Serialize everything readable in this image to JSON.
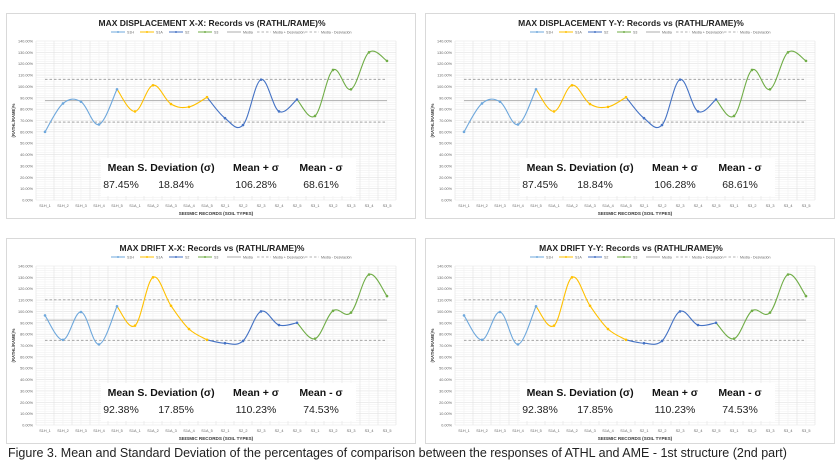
{
  "caption": "Figure 3. Mean and Standard Deviation of the percentages of comparison between the responses of ATHL and AME - 1st structure (2nd part)",
  "chart_data": [
    {
      "type": "line",
      "title": "MAX DISPLACEMENT X-X: Records vs (RATHL/RAME)%",
      "xlabel": "SEISMIC RECORDS (SOIL TYPES)",
      "ylabel": "(RATHL/RAME)%",
      "ylim": [
        0,
        140
      ],
      "yticks": [
        "0.00%",
        "10.00%",
        "20.00%",
        "30.00%",
        "40.00%",
        "50.00%",
        "60.00%",
        "70.00%",
        "80.00%",
        "90.00%",
        "100.00%",
        "110.00%",
        "120.00%",
        "130.00%",
        "140.00%"
      ],
      "categories": [
        "S1H_1",
        "S1H_2",
        "S1H_3",
        "S1H_4",
        "S1H_5",
        "S1A_1",
        "S1A_2",
        "S1A_3",
        "S1A_4",
        "S1A_5",
        "S2_1",
        "S2_2",
        "S2_3",
        "S2_4",
        "S2_5",
        "S3_1",
        "S3_2",
        "S3_3",
        "S3_4",
        "S3_5"
      ],
      "values": [
        60,
        85,
        86.5,
        66.5,
        97.5,
        78,
        101,
        84.5,
        82,
        90.5,
        72,
        66,
        106,
        78,
        88.5,
        74,
        114.5,
        97.5,
        130,
        122.5
      ],
      "series": [
        {
          "name": "S1H",
          "color": "#6fa8dc",
          "range": [
            0,
            4
          ]
        },
        {
          "name": "S1A",
          "color": "#ffc000",
          "range": [
            4,
            9
          ]
        },
        {
          "name": "S2",
          "color": "#4472c4",
          "range": [
            9,
            14
          ]
        },
        {
          "name": "S3",
          "color": "#70ad47",
          "range": [
            14,
            19
          ]
        }
      ],
      "reference_lines": [
        {
          "name": "Media",
          "value": 87.45,
          "style": "solid"
        },
        {
          "name": "Media + Desviación",
          "value": 106.28,
          "style": "dashed"
        },
        {
          "name": "Media - Desviación",
          "value": 68.61,
          "style": "dashed"
        }
      ],
      "legend_position": "top",
      "grid": true,
      "stats": {
        "headers": [
          "Mean",
          "S. Deviation (σ)",
          "Mean + σ",
          "Mean - σ"
        ],
        "values": [
          "87.45%",
          "18.84%",
          "106.28%",
          "68.61%"
        ]
      }
    },
    {
      "type": "line",
      "title": "MAX DISPLACEMENT Y-Y: Records vs (RATHL/RAME)%",
      "xlabel": "SEISMIC RECORDS (SOIL TYPES)",
      "ylabel": "(RATHL/RAME)%",
      "ylim": [
        0,
        140
      ],
      "yticks": [
        "0.00%",
        "10.00%",
        "20.00%",
        "30.00%",
        "40.00%",
        "50.00%",
        "60.00%",
        "70.00%",
        "80.00%",
        "90.00%",
        "100.00%",
        "110.00%",
        "120.00%",
        "130.00%",
        "140.00%"
      ],
      "categories": [
        "S1H_1",
        "S1H_2",
        "S1H_3",
        "S1H_4",
        "S1H_5",
        "S1A_1",
        "S1A_2",
        "S1A_3",
        "S1A_4",
        "S1A_5",
        "S2_1",
        "S2_2",
        "S2_3",
        "S2_4",
        "S2_5",
        "S3_1",
        "S3_2",
        "S3_3",
        "S3_4",
        "S3_5"
      ],
      "values": [
        60,
        85,
        86.5,
        66.5,
        97.5,
        78,
        101,
        84.5,
        82,
        90.5,
        72,
        66,
        106,
        78,
        88.5,
        74,
        114.5,
        97.5,
        130,
        122.5
      ],
      "series": [
        {
          "name": "S1H",
          "color": "#6fa8dc",
          "range": [
            0,
            4
          ]
        },
        {
          "name": "S1A",
          "color": "#ffc000",
          "range": [
            4,
            9
          ]
        },
        {
          "name": "S2",
          "color": "#4472c4",
          "range": [
            9,
            14
          ]
        },
        {
          "name": "S3",
          "color": "#70ad47",
          "range": [
            14,
            19
          ]
        }
      ],
      "reference_lines": [
        {
          "name": "Media",
          "value": 87.45,
          "style": "solid"
        },
        {
          "name": "Media + Desviación",
          "value": 106.28,
          "style": "dashed"
        },
        {
          "name": "Media - Desviación",
          "value": 68.61,
          "style": "dashed"
        }
      ],
      "legend_position": "top",
      "grid": true,
      "stats": {
        "headers": [
          "Mean",
          "S. Deviation (σ)",
          "Mean + σ",
          "Mean - σ"
        ],
        "values": [
          "87.45%",
          "18.84%",
          "106.28%",
          "68.61%"
        ]
      }
    },
    {
      "type": "line",
      "title": "MAX DRIFT X-X: Records vs (RATHL/RAME)%",
      "xlabel": "SEISMIC RECORDS (SOIL TYPES)",
      "ylabel": "(RATHL/RAME)%",
      "ylim": [
        0,
        140
      ],
      "yticks": [
        "0.00%",
        "10.00%",
        "20.00%",
        "30.00%",
        "40.00%",
        "50.00%",
        "60.00%",
        "70.00%",
        "80.00%",
        "90.00%",
        "100.00%",
        "110.00%",
        "120.00%",
        "130.00%",
        "140.00%"
      ],
      "categories": [
        "S1H_1",
        "S1H_2",
        "S1H_3",
        "S1H_4",
        "S1H_5",
        "S1A_1",
        "S1A_2",
        "S1A_3",
        "S1A_4",
        "S1A_5",
        "S2_1",
        "S2_2",
        "S2_3",
        "S2_4",
        "S2_5",
        "S3_1",
        "S3_2",
        "S3_3",
        "S3_4",
        "S3_5"
      ],
      "values": [
        96.5,
        75,
        99.5,
        71,
        104.5,
        87.5,
        130,
        105,
        84.5,
        75,
        72,
        74,
        100,
        88,
        90,
        76,
        100.5,
        99,
        132.5,
        113.5
      ],
      "series": [
        {
          "name": "S1H",
          "color": "#6fa8dc",
          "range": [
            0,
            4
          ]
        },
        {
          "name": "S1A",
          "color": "#ffc000",
          "range": [
            4,
            9
          ]
        },
        {
          "name": "S2",
          "color": "#4472c4",
          "range": [
            9,
            14
          ]
        },
        {
          "name": "S3",
          "color": "#70ad47",
          "range": [
            14,
            19
          ]
        }
      ],
      "reference_lines": [
        {
          "name": "Media",
          "value": 92.38,
          "style": "solid"
        },
        {
          "name": "Media + Desviación",
          "value": 110.23,
          "style": "dashed"
        },
        {
          "name": "Media - Desviación",
          "value": 74.53,
          "style": "dashed"
        }
      ],
      "legend_position": "top",
      "grid": true,
      "stats": {
        "headers": [
          "Mean",
          "S. Deviation (σ)",
          "Mean + σ",
          "Mean - σ"
        ],
        "values": [
          "92.38%",
          "17.85%",
          "110.23%",
          "74.53%"
        ]
      }
    },
    {
      "type": "line",
      "title": "MAX DRIFT Y-Y: Records vs (RATHL/RAME)%",
      "xlabel": "SEISMIC RECORDS (SOIL TYPES)",
      "ylabel": "(RATHL/RAME)%",
      "ylim": [
        0,
        140
      ],
      "yticks": [
        "0.00%",
        "10.00%",
        "20.00%",
        "30.00%",
        "40.00%",
        "50.00%",
        "60.00%",
        "70.00%",
        "80.00%",
        "90.00%",
        "100.00%",
        "110.00%",
        "120.00%",
        "130.00%",
        "140.00%"
      ],
      "categories": [
        "S1H_1",
        "S1H_2",
        "S1H_3",
        "S1H_4",
        "S1H_5",
        "S1A_1",
        "S1A_2",
        "S1A_3",
        "S1A_4",
        "S1A_5",
        "S2_1",
        "S2_2",
        "S2_3",
        "S2_4",
        "S2_5",
        "S3_1",
        "S3_2",
        "S3_3",
        "S3_4",
        "S3_5"
      ],
      "values": [
        96.5,
        75,
        99.5,
        71,
        104.5,
        87.5,
        130,
        105,
        84.5,
        75,
        72,
        74,
        100,
        88,
        90,
        76,
        100.5,
        99,
        132.5,
        113.5
      ],
      "series": [
        {
          "name": "S1H",
          "color": "#6fa8dc",
          "range": [
            0,
            4
          ]
        },
        {
          "name": "S1A",
          "color": "#ffc000",
          "range": [
            4,
            9
          ]
        },
        {
          "name": "S2",
          "color": "#4472c4",
          "range": [
            9,
            14
          ]
        },
        {
          "name": "S3",
          "color": "#70ad47",
          "range": [
            14,
            19
          ]
        }
      ],
      "reference_lines": [
        {
          "name": "Media",
          "value": 92.38,
          "style": "solid"
        },
        {
          "name": "Media + Desviación",
          "value": 110.23,
          "style": "dashed"
        },
        {
          "name": "Media - Desviación",
          "value": 74.53,
          "style": "dashed"
        }
      ],
      "legend_position": "top",
      "grid": true,
      "stats": {
        "headers": [
          "Mean",
          "S. Deviation (σ)",
          "Mean + σ",
          "Mean - σ"
        ],
        "values": [
          "92.38%",
          "17.85%",
          "110.23%",
          "74.53%"
        ]
      }
    }
  ]
}
